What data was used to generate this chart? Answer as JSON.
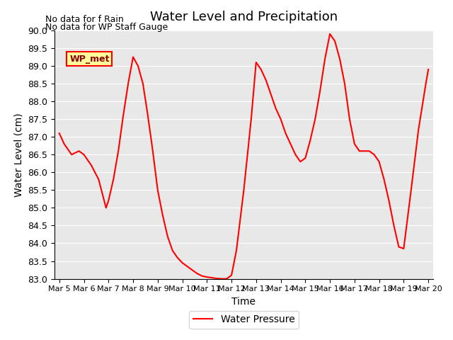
{
  "title": "Water Level and Precipitation",
  "xlabel": "Time",
  "ylabel": "Water Level (cm)",
  "ylim": [
    83.0,
    90.0
  ],
  "yticks": [
    83.0,
    83.5,
    84.0,
    84.5,
    85.0,
    85.5,
    86.0,
    86.5,
    87.0,
    87.5,
    88.0,
    88.5,
    89.0,
    89.5,
    90.0
  ],
  "background_color": "#e8e8e8",
  "line_color": "#ff0000",
  "legend_label": "Water Pressure",
  "no_data_text1": "No data for f Rain",
  "no_data_text2": "No data for WP Staff Gauge",
  "wp_met_label": "WP_met",
  "x_dates": [
    5,
    6,
    7,
    8,
    9,
    10,
    11,
    12,
    13,
    14,
    15,
    16,
    17,
    18,
    19,
    20
  ],
  "x_tick_labels": [
    "Mar 5",
    "Mar 6",
    "Mar 7",
    "Mar 8",
    "Mar 9",
    "Mar 10",
    "Mar 11",
    "Mar 12",
    "Mar 13",
    "Mar 14",
    "Mar 15",
    "Mar 16",
    "Mar 17",
    "Mar 18",
    "Mar 19",
    "Mar 20"
  ],
  "water_pressure_x": [
    5.0,
    5.2,
    5.5,
    5.8,
    6.0,
    6.3,
    6.6,
    6.9,
    7.0,
    7.2,
    7.4,
    7.6,
    7.8,
    8.0,
    8.2,
    8.4,
    8.6,
    8.8,
    9.0,
    9.2,
    9.4,
    9.6,
    9.8,
    10.0,
    10.2,
    10.4,
    10.6,
    10.8,
    11.0,
    11.2,
    11.4,
    11.6,
    11.8,
    12.0,
    12.2,
    12.5,
    12.8,
    13.0,
    13.2,
    13.4,
    13.6,
    13.8,
    14.0,
    14.2,
    14.4,
    14.6,
    14.8,
    15.0,
    15.2,
    15.4,
    15.6,
    15.8,
    16.0,
    16.2,
    16.4,
    16.6,
    16.8,
    17.0,
    17.2,
    17.4,
    17.6,
    17.8,
    18.0,
    18.2,
    18.4,
    18.6,
    18.8,
    19.0,
    19.3,
    19.6,
    19.9,
    20.0
  ],
  "water_pressure_y": [
    87.1,
    86.8,
    86.5,
    86.6,
    86.5,
    86.2,
    85.8,
    85.0,
    85.2,
    85.8,
    86.6,
    87.6,
    88.5,
    89.25,
    89.0,
    88.5,
    87.6,
    86.6,
    85.5,
    84.8,
    84.2,
    83.8,
    83.6,
    83.45,
    83.35,
    83.25,
    83.15,
    83.08,
    83.05,
    83.03,
    83.01,
    83.0,
    83.0,
    83.1,
    83.8,
    85.5,
    87.5,
    89.1,
    88.9,
    88.6,
    88.2,
    87.8,
    87.5,
    87.1,
    86.8,
    86.5,
    86.3,
    86.4,
    86.9,
    87.5,
    88.3,
    89.2,
    89.9,
    89.7,
    89.2,
    88.5,
    87.5,
    86.8,
    86.6,
    86.6,
    86.6,
    86.5,
    86.3,
    85.8,
    85.2,
    84.5,
    83.9,
    83.85,
    85.5,
    87.2,
    88.5,
    88.9
  ]
}
